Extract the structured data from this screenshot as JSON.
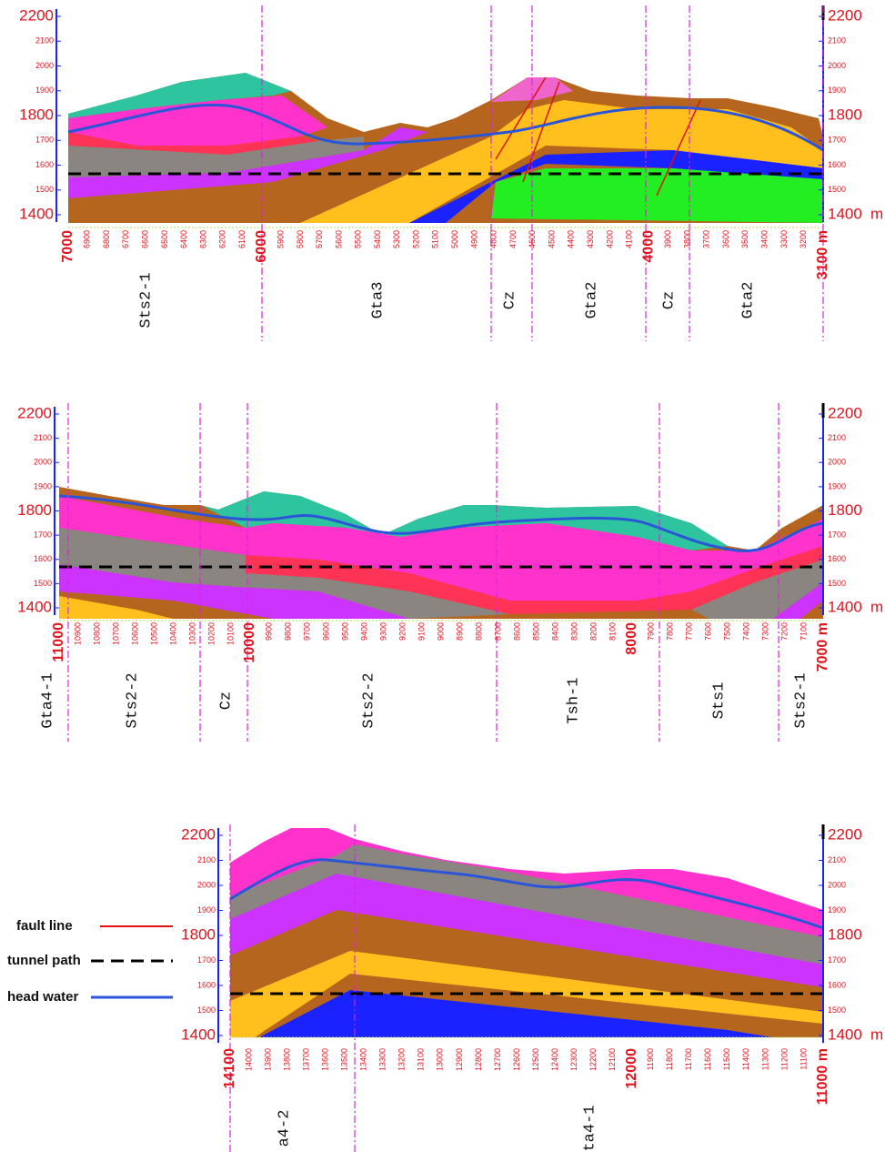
{
  "panels": [
    {
      "elevation_ticks": [
        "2200",
        "2100",
        "2000",
        "1900",
        "1800",
        "1700",
        "1600",
        "1500",
        "1400"
      ],
      "unit": "m",
      "chainage_ticks": [
        "7000",
        "6900",
        "6800",
        "6700",
        "6600",
        "6500",
        "6400",
        "6300",
        "6200",
        "6100",
        "6000",
        "5900",
        "5800",
        "5700",
        "5600",
        "5500",
        "5400",
        "5300",
        "5200",
        "5100",
        "5000",
        "4900",
        "4800",
        "4700",
        "4600",
        "4500",
        "4400",
        "4300",
        "4200",
        "4100",
        "4000",
        "3900",
        "3800",
        "3700",
        "3600",
        "3500",
        "3400",
        "3300",
        "3200",
        "3100 m"
      ],
      "formations": [
        "Sts2-1",
        "Gta3",
        "Cz",
        "Gta2",
        "Cz",
        "Gta2"
      ]
    },
    {
      "elevation_ticks": [
        "2200",
        "2100",
        "2000",
        "1900",
        "1800",
        "1700",
        "1600",
        "1500",
        "1400"
      ],
      "unit": "m",
      "chainage_ticks": [
        "11000",
        "10900",
        "10800",
        "10700",
        "10600",
        "10500",
        "10400",
        "10300",
        "10200",
        "10100",
        "10000",
        "9900",
        "9800",
        "9700",
        "9600",
        "9500",
        "9400",
        "9300",
        "9200",
        "9100",
        "9000",
        "8900",
        "8800",
        "8700",
        "8600",
        "8500",
        "8400",
        "8300",
        "8200",
        "8100",
        "8000",
        "7900",
        "7800",
        "7700",
        "7600",
        "7500",
        "7400",
        "7300",
        "7200",
        "7100",
        "7000 m"
      ],
      "formations": [
        "Gta4-1",
        "Sts2-2",
        "Cz",
        "Sts2-2",
        "Tsh-1",
        "Sts1",
        "Sts2-1"
      ]
    },
    {
      "elevation_ticks": [
        "2200",
        "2100",
        "2000",
        "1900",
        "1800",
        "1700",
        "1600",
        "1500",
        "1400"
      ],
      "unit": "m",
      "chainage_ticks": [
        "14100",
        "14000",
        "13900",
        "13800",
        "13700",
        "13600",
        "13500",
        "13400",
        "13300",
        "13200",
        "13100",
        "13000",
        "12900",
        "12800",
        "12700",
        "12600",
        "12500",
        "12400",
        "12300",
        "12200",
        "12100",
        "12000",
        "11900",
        "11800",
        "11700",
        "11600",
        "11500",
        "11400",
        "11300",
        "11200",
        "11100",
        "11000 m"
      ],
      "formations": [
        "a4-2",
        "ta4-1"
      ]
    }
  ],
  "legend": {
    "items": [
      "fault line",
      "tunnel path",
      "head water"
    ]
  }
}
